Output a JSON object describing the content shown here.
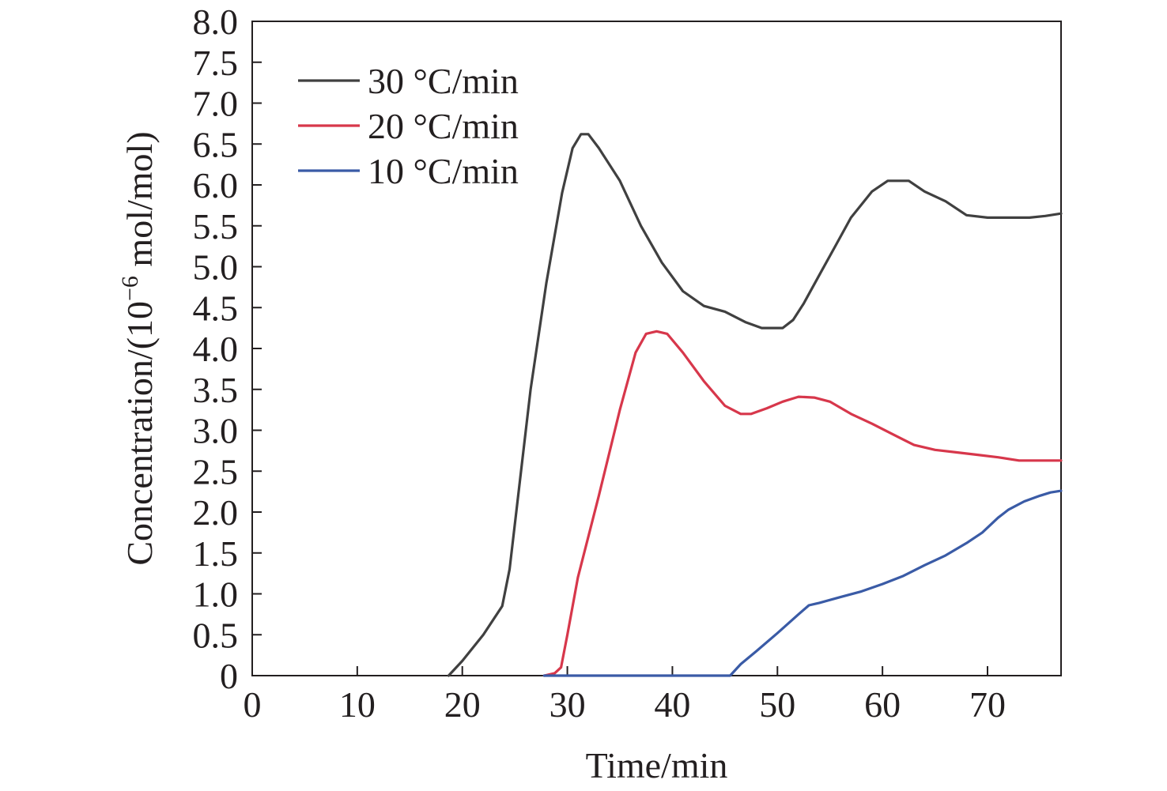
{
  "chart_data": {
    "type": "line",
    "title": "",
    "xlabel": "Time/min",
    "ylabel_main": "Concentration/(10",
    "ylabel_sup": "−6",
    "ylabel_rest": " mol/mol)",
    "xlim": [
      0,
      77
    ],
    "ylim": [
      0,
      8
    ],
    "x_ticks": [
      0,
      10,
      20,
      30,
      40,
      50,
      60,
      70
    ],
    "x_tick_labels": [
      "0",
      "10",
      "20",
      "30",
      "40",
      "50",
      "60",
      "70"
    ],
    "y_ticks": [
      0,
      0.5,
      1.0,
      1.5,
      2.0,
      2.5,
      3.0,
      3.5,
      4.0,
      4.5,
      5.0,
      5.5,
      6.0,
      6.5,
      7.0,
      7.5,
      8.0
    ],
    "y_tick_labels": [
      "0",
      "0.5",
      "1.0",
      "1.5",
      "2.0",
      "2.5",
      "3.0",
      "3.5",
      "4.0",
      "4.5",
      "5.0",
      "5.5",
      "6.0",
      "6.5",
      "7.0",
      "7.5",
      "8.0"
    ],
    "legend_position": "top-left",
    "series": [
      {
        "name": "30 °C/min",
        "color": "#404040",
        "points": [
          [
            18.7,
            0
          ],
          [
            20,
            0.18
          ],
          [
            22,
            0.5
          ],
          [
            23.8,
            0.85
          ],
          [
            24.5,
            1.3
          ],
          [
            25.5,
            2.4
          ],
          [
            26.5,
            3.5
          ],
          [
            28,
            4.8
          ],
          [
            29.5,
            5.9
          ],
          [
            30.5,
            6.45
          ],
          [
            31.3,
            6.62
          ],
          [
            32,
            6.62
          ],
          [
            33,
            6.45
          ],
          [
            35,
            6.05
          ],
          [
            37,
            5.5
          ],
          [
            39,
            5.05
          ],
          [
            41,
            4.7
          ],
          [
            43,
            4.52
          ],
          [
            45,
            4.45
          ],
          [
            47,
            4.32
          ],
          [
            48.5,
            4.25
          ],
          [
            50.5,
            4.25
          ],
          [
            51.5,
            4.35
          ],
          [
            52.5,
            4.55
          ],
          [
            54,
            4.9
          ],
          [
            55.5,
            5.25
          ],
          [
            57,
            5.6
          ],
          [
            59,
            5.92
          ],
          [
            60.5,
            6.05
          ],
          [
            62.5,
            6.05
          ],
          [
            64,
            5.92
          ],
          [
            66,
            5.8
          ],
          [
            68,
            5.63
          ],
          [
            70,
            5.6
          ],
          [
            71,
            5.6
          ],
          [
            74,
            5.6
          ],
          [
            75.5,
            5.62
          ],
          [
            77,
            5.65
          ]
        ]
      },
      {
        "name": "20 °C/min",
        "color": "#d7374b",
        "points": [
          [
            27.8,
            0
          ],
          [
            28.8,
            0.03
          ],
          [
            29.4,
            0.1
          ],
          [
            30,
            0.5
          ],
          [
            31,
            1.2
          ],
          [
            33,
            2.2
          ],
          [
            35,
            3.25
          ],
          [
            36.5,
            3.95
          ],
          [
            37.5,
            4.18
          ],
          [
            38.5,
            4.21
          ],
          [
            39.5,
            4.18
          ],
          [
            41,
            3.95
          ],
          [
            43,
            3.6
          ],
          [
            45,
            3.3
          ],
          [
            46.5,
            3.2
          ],
          [
            47.5,
            3.2
          ],
          [
            49,
            3.27
          ],
          [
            50.5,
            3.35
          ],
          [
            52,
            3.41
          ],
          [
            53.5,
            3.4
          ],
          [
            55,
            3.35
          ],
          [
            57,
            3.2
          ],
          [
            59,
            3.08
          ],
          [
            61,
            2.95
          ],
          [
            63,
            2.82
          ],
          [
            65,
            2.76
          ],
          [
            67,
            2.73
          ],
          [
            69,
            2.7
          ],
          [
            71,
            2.67
          ],
          [
            73,
            2.63
          ],
          [
            77,
            2.63
          ]
        ]
      },
      {
        "name": "10 °C/min",
        "color": "#3a5ba6",
        "points": [
          [
            27.8,
            0
          ],
          [
            45.5,
            0
          ],
          [
            46.5,
            0.14
          ],
          [
            48,
            0.3
          ],
          [
            50,
            0.52
          ],
          [
            52,
            0.75
          ],
          [
            53,
            0.86
          ],
          [
            54,
            0.89
          ],
          [
            56,
            0.96
          ],
          [
            58,
            1.03
          ],
          [
            60,
            1.12
          ],
          [
            62,
            1.22
          ],
          [
            64,
            1.35
          ],
          [
            66,
            1.47
          ],
          [
            68,
            1.62
          ],
          [
            69.5,
            1.75
          ],
          [
            71,
            1.93
          ],
          [
            72,
            2.03
          ],
          [
            73.5,
            2.13
          ],
          [
            75,
            2.2
          ],
          [
            76,
            2.24
          ],
          [
            77,
            2.26
          ]
        ]
      }
    ]
  }
}
